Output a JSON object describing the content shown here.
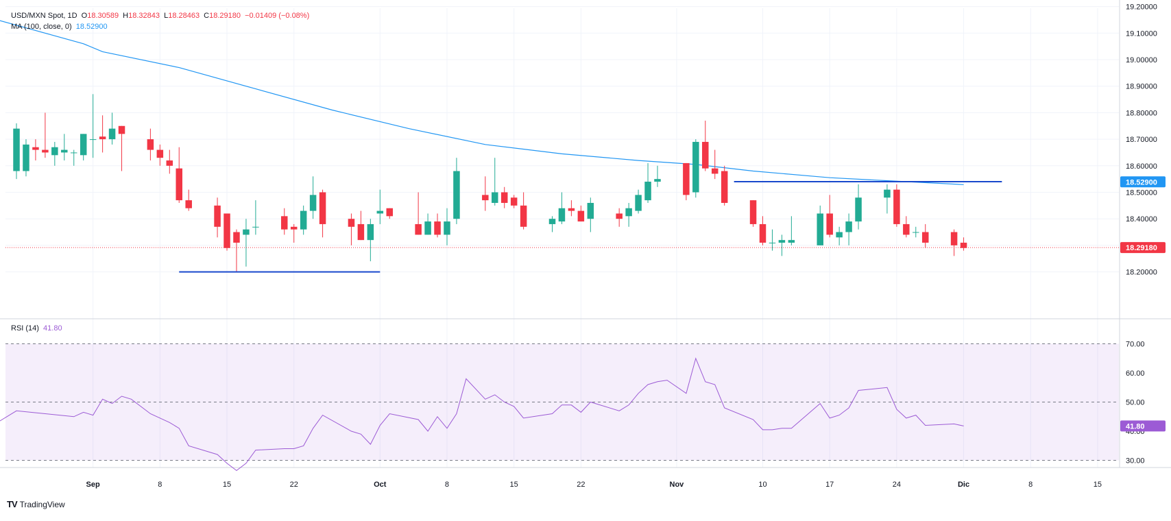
{
  "legend": {
    "symbol": "USD/MXN Spot, 1D",
    "open_label": "O",
    "open": "18.30589",
    "high_label": "H",
    "high": "18.32843",
    "low_label": "L",
    "low": "18.28463",
    "close_label": "C",
    "close": "18.29180",
    "change": "−0.01409 (−0.08%)",
    "ma_label": "MA (100, close, 0)",
    "ma_value": "18.52900",
    "rsi_label": "RSI (14)",
    "rsi_value": "41.80"
  },
  "brand": "TradingView",
  "colors": {
    "up": "#22ab94",
    "down": "#f23645",
    "ma": "#2196f3",
    "rsi": "#9c5bd5",
    "trendline": "#1848cc"
  },
  "chart_data": [
    {
      "type": "candlestick",
      "price_axis": {
        "ticks": [
          "18.20000",
          "18.30000",
          "18.40000",
          "18.50000",
          "18.60000",
          "18.70000",
          "18.80000",
          "18.90000",
          "19.00000",
          "19.10000",
          "19.20000"
        ],
        "range": [
          18.13,
          19.26
        ]
      },
      "x_axis": {
        "labels": [
          "Sep",
          "8",
          "15",
          "22",
          "Oct",
          "8",
          "15",
          "22",
          "Nov",
          "10",
          "17",
          "24",
          "Dic",
          "8",
          "15"
        ],
        "label_days": [
          1,
          8,
          15,
          22,
          31,
          38,
          45,
          52,
          62,
          71,
          78,
          85,
          92,
          99,
          106
        ]
      },
      "last_price_label": "18.29180",
      "ma_price_label": "18.52900",
      "candles": [
        {
          "d": -7,
          "o": 18.58,
          "h": 18.76,
          "l": 18.55,
          "c": 18.74
        },
        {
          "d": -6,
          "o": 18.58,
          "h": 18.7,
          "l": 18.56,
          "c": 18.68
        },
        {
          "d": -5,
          "o": 18.67,
          "h": 18.7,
          "l": 18.62,
          "c": 18.66
        },
        {
          "d": -4,
          "o": 18.66,
          "h": 18.8,
          "l": 18.63,
          "c": 18.65
        },
        {
          "d": -3,
          "o": 18.64,
          "h": 18.69,
          "l": 18.6,
          "c": 18.67
        },
        {
          "d": -2,
          "o": 18.65,
          "h": 18.72,
          "l": 18.62,
          "c": 18.66
        },
        {
          "d": -1,
          "o": 18.65,
          "h": 18.66,
          "l": 18.6,
          "c": 18.65
        },
        {
          "d": 0,
          "o": 18.64,
          "h": 18.72,
          "l": 18.62,
          "c": 18.72
        },
        {
          "d": 1,
          "o": 18.7,
          "h": 18.87,
          "l": 18.63,
          "c": 18.7
        },
        {
          "d": 2,
          "o": 18.71,
          "h": 18.79,
          "l": 18.65,
          "c": 18.7
        },
        {
          "d": 3,
          "o": 18.7,
          "h": 18.8,
          "l": 18.68,
          "c": 18.74
        },
        {
          "d": 4,
          "o": 18.75,
          "h": 18.75,
          "l": 18.58,
          "c": 18.72
        },
        {
          "d": 7,
          "o": 18.7,
          "h": 18.74,
          "l": 18.62,
          "c": 18.66
        },
        {
          "d": 8,
          "o": 18.66,
          "h": 18.68,
          "l": 18.6,
          "c": 18.63
        },
        {
          "d": 9,
          "o": 18.62,
          "h": 18.66,
          "l": 18.57,
          "c": 18.6
        },
        {
          "d": 10,
          "o": 18.59,
          "h": 18.67,
          "l": 18.46,
          "c": 18.47
        },
        {
          "d": 11,
          "o": 18.47,
          "h": 18.51,
          "l": 18.43,
          "c": 18.44
        },
        {
          "d": 14,
          "o": 18.45,
          "h": 18.48,
          "l": 18.33,
          "c": 18.37
        },
        {
          "d": 15,
          "o": 18.42,
          "h": 18.42,
          "l": 18.28,
          "c": 18.29
        },
        {
          "d": 16,
          "o": 18.35,
          "h": 18.36,
          "l": 18.2,
          "c": 18.31
        },
        {
          "d": 17,
          "o": 18.34,
          "h": 18.4,
          "l": 18.22,
          "c": 18.36
        },
        {
          "d": 18,
          "o": 18.37,
          "h": 18.47,
          "l": 18.34,
          "c": 18.37
        },
        {
          "d": 21,
          "o": 18.41,
          "h": 18.44,
          "l": 18.34,
          "c": 18.36
        },
        {
          "d": 22,
          "o": 18.37,
          "h": 18.38,
          "l": 18.31,
          "c": 18.36
        },
        {
          "d": 23,
          "o": 18.36,
          "h": 18.45,
          "l": 18.34,
          "c": 18.43
        },
        {
          "d": 24,
          "o": 18.43,
          "h": 18.56,
          "l": 18.4,
          "c": 18.49
        },
        {
          "d": 25,
          "o": 18.5,
          "h": 18.51,
          "l": 18.33,
          "c": 18.38
        },
        {
          "d": 28,
          "o": 18.4,
          "h": 18.42,
          "l": 18.3,
          "c": 18.37
        },
        {
          "d": 29,
          "o": 18.38,
          "h": 18.43,
          "l": 18.32,
          "c": 18.32
        },
        {
          "d": 30,
          "o": 18.32,
          "h": 18.4,
          "l": 18.24,
          "c": 18.38
        },
        {
          "d": 31,
          "o": 18.42,
          "h": 18.51,
          "l": 18.38,
          "c": 18.43
        },
        {
          "d": 32,
          "o": 18.44,
          "h": 18.44,
          "l": 18.4,
          "c": 18.41
        },
        {
          "d": 35,
          "o": 18.38,
          "h": 18.5,
          "l": 18.34,
          "c": 18.34
        },
        {
          "d": 36,
          "o": 18.34,
          "h": 18.42,
          "l": 18.34,
          "c": 18.39
        },
        {
          "d": 37,
          "o": 18.39,
          "h": 18.42,
          "l": 18.33,
          "c": 18.34
        },
        {
          "d": 38,
          "o": 18.34,
          "h": 18.44,
          "l": 18.3,
          "c": 18.39
        },
        {
          "d": 39,
          "o": 18.4,
          "h": 18.63,
          "l": 18.38,
          "c": 18.58
        },
        {
          "d": 42,
          "o": 18.49,
          "h": 18.56,
          "l": 18.43,
          "c": 18.47
        },
        {
          "d": 43,
          "o": 18.46,
          "h": 18.63,
          "l": 18.45,
          "c": 18.5
        },
        {
          "d": 44,
          "o": 18.5,
          "h": 18.52,
          "l": 18.44,
          "c": 18.46
        },
        {
          "d": 45,
          "o": 18.48,
          "h": 18.49,
          "l": 18.44,
          "c": 18.45
        },
        {
          "d": 46,
          "o": 18.45,
          "h": 18.5,
          "l": 18.36,
          "c": 18.37
        },
        {
          "d": 49,
          "o": 18.38,
          "h": 18.41,
          "l": 18.35,
          "c": 18.4
        },
        {
          "d": 50,
          "o": 18.39,
          "h": 18.5,
          "l": 18.38,
          "c": 18.44
        },
        {
          "d": 51,
          "o": 18.44,
          "h": 18.47,
          "l": 18.41,
          "c": 18.43
        },
        {
          "d": 52,
          "o": 18.43,
          "h": 18.45,
          "l": 18.39,
          "c": 18.39
        },
        {
          "d": 53,
          "o": 18.4,
          "h": 18.48,
          "l": 18.35,
          "c": 18.46
        },
        {
          "d": 56,
          "o": 18.42,
          "h": 18.44,
          "l": 18.37,
          "c": 18.4
        },
        {
          "d": 57,
          "o": 18.41,
          "h": 18.46,
          "l": 18.37,
          "c": 18.44
        },
        {
          "d": 58,
          "o": 18.43,
          "h": 18.51,
          "l": 18.42,
          "c": 18.49
        },
        {
          "d": 59,
          "o": 18.47,
          "h": 18.61,
          "l": 18.46,
          "c": 18.54
        },
        {
          "d": 60,
          "o": 18.54,
          "h": 18.6,
          "l": 18.52,
          "c": 18.55
        },
        {
          "d": 63,
          "o": 18.61,
          "h": 18.61,
          "l": 18.47,
          "c": 18.49
        },
        {
          "d": 64,
          "o": 18.5,
          "h": 18.7,
          "l": 18.48,
          "c": 18.69
        },
        {
          "d": 65,
          "o": 18.69,
          "h": 18.77,
          "l": 18.58,
          "c": 18.59
        },
        {
          "d": 66,
          "o": 18.59,
          "h": 18.66,
          "l": 18.55,
          "c": 18.57
        },
        {
          "d": 67,
          "o": 18.58,
          "h": 18.6,
          "l": 18.45,
          "c": 18.46
        },
        {
          "d": 70,
          "o": 18.47,
          "h": 18.47,
          "l": 18.37,
          "c": 18.38
        },
        {
          "d": 71,
          "o": 18.38,
          "h": 18.41,
          "l": 18.3,
          "c": 18.31
        },
        {
          "d": 72,
          "o": 18.31,
          "h": 18.36,
          "l": 18.28,
          "c": 18.31
        },
        {
          "d": 73,
          "o": 18.31,
          "h": 18.34,
          "l": 18.26,
          "c": 18.32
        },
        {
          "d": 74,
          "o": 18.31,
          "h": 18.41,
          "l": 18.3,
          "c": 18.32
        },
        {
          "d": 77,
          "o": 18.3,
          "h": 18.45,
          "l": 18.3,
          "c": 18.42
        },
        {
          "d": 78,
          "o": 18.42,
          "h": 18.49,
          "l": 18.33,
          "c": 18.34
        },
        {
          "d": 79,
          "o": 18.33,
          "h": 18.37,
          "l": 18.3,
          "c": 18.35
        },
        {
          "d": 80,
          "o": 18.35,
          "h": 18.42,
          "l": 18.3,
          "c": 18.39
        },
        {
          "d": 81,
          "o": 18.39,
          "h": 18.53,
          "l": 18.36,
          "c": 18.48
        },
        {
          "d": 84,
          "o": 18.48,
          "h": 18.53,
          "l": 18.42,
          "c": 18.51
        },
        {
          "d": 85,
          "o": 18.51,
          "h": 18.53,
          "l": 18.37,
          "c": 18.38
        },
        {
          "d": 86,
          "o": 18.38,
          "h": 18.41,
          "l": 18.33,
          "c": 18.34
        },
        {
          "d": 87,
          "o": 18.35,
          "h": 18.37,
          "l": 18.33,
          "c": 18.35
        },
        {
          "d": 88,
          "o": 18.35,
          "h": 18.38,
          "l": 18.29,
          "c": 18.31
        },
        {
          "d": 91,
          "o": 18.35,
          "h": 18.36,
          "l": 18.26,
          "c": 18.3
        },
        {
          "d": 92,
          "o": 18.31,
          "h": 18.33,
          "l": 18.28,
          "c": 18.29
        }
      ],
      "moving_average": {
        "name": "MA (100, close, 0)",
        "points": [
          [
            -9,
            19.15
          ],
          [
            0,
            19.06
          ],
          [
            2,
            19.03
          ],
          [
            10,
            18.97
          ],
          [
            18,
            18.89
          ],
          [
            26,
            18.81
          ],
          [
            34,
            18.74
          ],
          [
            42,
            18.68
          ],
          [
            50,
            18.645
          ],
          [
            58,
            18.62
          ],
          [
            64,
            18.605
          ],
          [
            70,
            18.58
          ],
          [
            78,
            18.555
          ],
          [
            86,
            18.54
          ],
          [
            92,
            18.529
          ]
        ]
      },
      "trendlines": [
        {
          "from_day": 10,
          "to_day": 31,
          "value": 18.2
        },
        {
          "from_day": 68,
          "to_day": 96,
          "value": 18.54
        }
      ]
    },
    {
      "type": "line",
      "name": "RSI (14)",
      "y_ticks": [
        "30.00",
        "40.00",
        "50.00",
        "60.00",
        "70.00"
      ],
      "range": [
        23,
        73
      ],
      "bands": [
        30,
        50,
        70
      ],
      "value_label": "41.80",
      "points": [
        [
          -9,
          43
        ],
        [
          -7,
          47
        ],
        [
          -4,
          46
        ],
        [
          -1,
          45
        ],
        [
          0,
          46.5
        ],
        [
          1,
          45.5
        ],
        [
          2,
          51
        ],
        [
          3,
          49.5
        ],
        [
          4,
          52
        ],
        [
          5,
          51
        ],
        [
          7,
          46
        ],
        [
          9,
          43
        ],
        [
          10,
          41
        ],
        [
          11,
          35
        ],
        [
          14,
          32
        ],
        [
          15,
          29
        ],
        [
          16,
          26.5
        ],
        [
          17,
          29
        ],
        [
          18,
          33.5
        ],
        [
          21,
          34
        ],
        [
          22,
          34
        ],
        [
          23,
          35
        ],
        [
          24,
          41
        ],
        [
          25,
          45.5
        ],
        [
          28,
          40
        ],
        [
          29,
          39
        ],
        [
          30,
          35.5
        ],
        [
          31,
          42
        ],
        [
          32,
          46
        ],
        [
          35,
          44
        ],
        [
          36,
          40
        ],
        [
          37,
          45
        ],
        [
          38,
          41
        ],
        [
          39,
          46
        ],
        [
          40,
          58
        ],
        [
          42,
          51
        ],
        [
          43,
          52.5
        ],
        [
          44,
          50
        ],
        [
          45,
          48.5
        ],
        [
          46,
          44.5
        ],
        [
          49,
          46
        ],
        [
          50,
          49
        ],
        [
          51,
          49
        ],
        [
          52,
          46.5
        ],
        [
          53,
          50
        ],
        [
          56,
          47
        ],
        [
          57,
          49
        ],
        [
          58,
          53
        ],
        [
          59,
          56
        ],
        [
          60,
          57
        ],
        [
          61,
          57.5
        ],
        [
          63,
          53
        ],
        [
          64,
          65
        ],
        [
          65,
          57
        ],
        [
          66,
          56
        ],
        [
          67,
          48
        ],
        [
          70,
          44
        ],
        [
          71,
          40.5
        ],
        [
          72,
          40.5
        ],
        [
          73,
          41
        ],
        [
          74,
          41
        ],
        [
          77,
          49.5
        ],
        [
          78,
          44.5
        ],
        [
          79,
          45.5
        ],
        [
          80,
          48
        ],
        [
          81,
          54
        ],
        [
          84,
          55
        ],
        [
          85,
          47.5
        ],
        [
          86,
          44.5
        ],
        [
          87,
          45.5
        ],
        [
          88,
          42
        ],
        [
          91,
          42.5
        ],
        [
          92,
          41.8
        ]
      ]
    }
  ]
}
